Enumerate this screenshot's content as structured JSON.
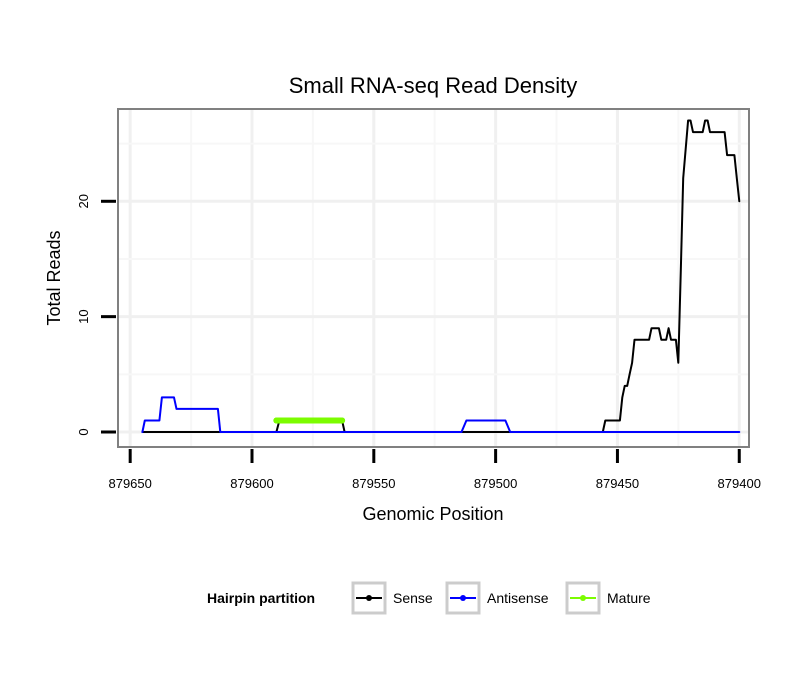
{
  "chart_data": {
    "type": "line",
    "title": "Small RNA-seq Read Density",
    "xlabel": "Genomic Position",
    "ylabel": "Total Reads",
    "xlim": [
      879655,
      879396
    ],
    "x_reversed": true,
    "ylim": [
      -1.3,
      28
    ],
    "x_ticks": [
      879650,
      879600,
      879550,
      879500,
      879450,
      879400
    ],
    "x_tick_labels": [
      "879650",
      "879600",
      "879550",
      "879500",
      "879450",
      "879400"
    ],
    "y_ticks": [
      0,
      10,
      20
    ],
    "y_tick_labels": [
      "0",
      "10",
      "20"
    ],
    "grid": true,
    "legend": {
      "position": "bottom",
      "title": "Hairpin partition",
      "entries": [
        "Sense",
        "Antisense",
        "Mature"
      ]
    },
    "series": [
      {
        "name": "Sense",
        "color": "#000000",
        "points": [
          [
            879645,
            0
          ],
          [
            879590,
            0
          ],
          [
            879589,
            0.8
          ],
          [
            879588,
            1
          ],
          [
            879563,
            1
          ],
          [
            879562,
            0
          ],
          [
            879456,
            0
          ],
          [
            879455,
            1
          ],
          [
            879449,
            1
          ],
          [
            879448,
            3
          ],
          [
            879447,
            4
          ],
          [
            879446,
            4
          ],
          [
            879445,
            5
          ],
          [
            879444,
            6
          ],
          [
            879443,
            8
          ],
          [
            879437,
            8
          ],
          [
            879436,
            9
          ],
          [
            879433,
            9
          ],
          [
            879432,
            8
          ],
          [
            879430,
            8
          ],
          [
            879429,
            9
          ],
          [
            879428,
            8
          ],
          [
            879426,
            8
          ],
          [
            879425,
            6
          ],
          [
            879424,
            14
          ],
          [
            879423,
            22
          ],
          [
            879421,
            27
          ],
          [
            879420,
            27
          ],
          [
            879419,
            26
          ],
          [
            879415,
            26
          ],
          [
            879414,
            27
          ],
          [
            879413,
            27
          ],
          [
            879412,
            26
          ],
          [
            879406,
            26
          ],
          [
            879405,
            24
          ],
          [
            879402,
            24
          ],
          [
            879401,
            22
          ],
          [
            879400,
            20
          ]
        ]
      },
      {
        "name": "Antisense",
        "color": "#0000ff",
        "points": [
          [
            879645,
            0
          ],
          [
            879644,
            1
          ],
          [
            879638,
            1
          ],
          [
            879637,
            3
          ],
          [
            879632,
            3
          ],
          [
            879631,
            2
          ],
          [
            879614,
            2
          ],
          [
            879613,
            0
          ],
          [
            879514,
            0
          ],
          [
            879512,
            1
          ],
          [
            879496,
            1
          ],
          [
            879494,
            0
          ],
          [
            879400,
            0
          ]
        ]
      },
      {
        "name": "Mature",
        "color": "#7cfc00",
        "points": [
          [
            879590,
            1
          ],
          [
            879563,
            1
          ]
        ]
      }
    ]
  }
}
